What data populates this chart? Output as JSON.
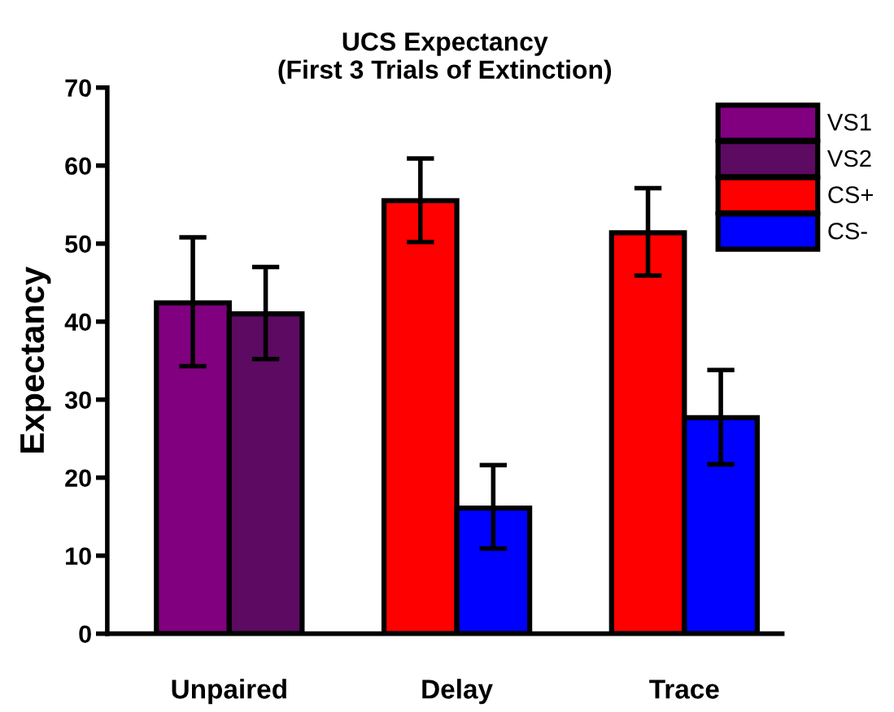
{
  "chart_data": {
    "type": "bar",
    "title": "UCS Expectancy\n(First 3 Trials of Extinction)",
    "ylabel": "Expectancy",
    "categories": [
      "Unpaired",
      "Delay",
      "Trace"
    ],
    "series": [
      {
        "name": "VS1",
        "color": "#800080",
        "values": [
          42.4,
          null,
          null
        ],
        "errors": [
          [
            34.3,
            50.8
          ],
          null,
          null
        ]
      },
      {
        "name": "VS2",
        "color": "#5c0a62",
        "values": [
          41.0,
          null,
          null
        ],
        "errors": [
          [
            35.2,
            47.0
          ],
          null,
          null
        ]
      },
      {
        "name": "CS+",
        "color": "#ff0000",
        "values": [
          null,
          55.5,
          51.4
        ],
        "errors": [
          null,
          [
            50.2,
            60.9
          ],
          [
            45.9,
            57.1
          ]
        ]
      },
      {
        "name": "CS-",
        "color": "#0000ff",
        "values": [
          null,
          16.1,
          27.7
        ],
        "errors": [
          null,
          [
            10.9,
            21.6
          ],
          [
            21.7,
            33.8
          ]
        ]
      }
    ],
    "ylim": [
      0,
      70
    ],
    "yticks": [
      0,
      10,
      20,
      30,
      40,
      50,
      60,
      70
    ],
    "legend": "top right",
    "grid": false
  }
}
